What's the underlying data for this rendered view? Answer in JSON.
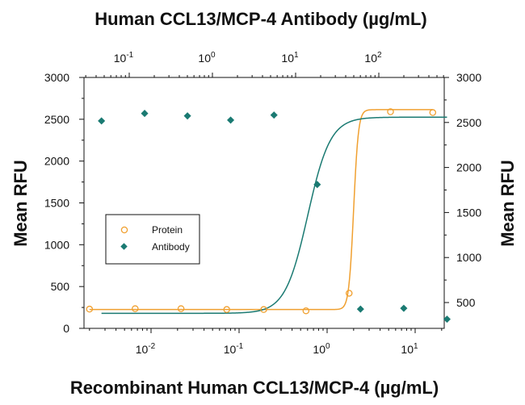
{
  "chart_data": {
    "type": "scatter",
    "title": "Human CCL13/MCP-4 Antibody (µg/mL)",
    "xlabel": "Recombinant Human CCL13/MCP-4 (µg/mL)",
    "ylabel_left": "Mean RFU",
    "ylabel_right": "Mean RFU",
    "x_scale": "log",
    "x_bottom_ticks": [
      {
        "value": 0.01,
        "base": "10",
        "exp": "-2"
      },
      {
        "value": 0.1,
        "base": "10",
        "exp": "-1"
      },
      {
        "value": 1,
        "base": "10",
        "exp": "0"
      },
      {
        "value": 10,
        "base": "10",
        "exp": "1"
      }
    ],
    "x_top_ticks": [
      {
        "value": 0.1,
        "base": "10",
        "exp": "-1"
      },
      {
        "value": 1,
        "base": "10",
        "exp": "0"
      },
      {
        "value": 10,
        "base": "10",
        "exp": "1"
      },
      {
        "value": 100,
        "base": "10",
        "exp": "2"
      }
    ],
    "y_left_ticks": [
      0,
      500,
      1000,
      1500,
      2000,
      2500,
      3000
    ],
    "y_right_ticks": [
      500,
      1000,
      1500,
      2000,
      2500,
      3000
    ],
    "ylim": [
      0,
      3000
    ],
    "legend_position": "left-middle",
    "series": [
      {
        "name": "Protein",
        "axis": "bottom-left",
        "marker": "open-circle",
        "color": "#f0a030",
        "x": [
          0.002,
          0.0066,
          0.0219,
          0.0724,
          0.1905,
          0.5754,
          1.7783,
          5.2481,
          15.8489
        ],
        "y": [
          230,
          235,
          235,
          225,
          225,
          210,
          420,
          2590,
          2580
        ],
        "fit": {
          "bottom": 225,
          "top": 2615,
          "ec50": 2.0,
          "hill": 16
        }
      },
      {
        "name": "Antibody",
        "axis": "top-left",
        "marker": "filled-diamond",
        "color": "#1a7a72",
        "x": [
          0.0464,
          0.1531,
          0.5011,
          1.6558,
          5.4954,
          18.197,
          60.256,
          199.5262,
          660.6934
        ],
        "y": [
          2480,
          2570,
          2540,
          2490,
          2550,
          1720,
          230,
          240,
          110
        ],
        "fit": {
          "bottom": 180,
          "top": 2525,
          "ec50": 14,
          "hill": 3.2
        }
      }
    ]
  }
}
